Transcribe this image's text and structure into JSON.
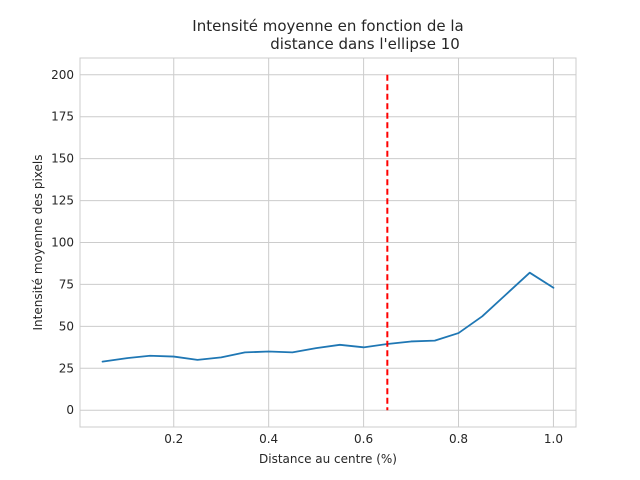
{
  "chart_data": {
    "type": "line",
    "title_lines": [
      "Intensité moyenne en fonction de la",
      "distance dans l'ellipse 10"
    ],
    "xlabel": "Distance au centre (%)",
    "ylabel": "Intensité moyenne des pixels",
    "xlim": [
      0.0025,
      1.0475
    ],
    "ylim": [
      -10,
      210
    ],
    "xticks": [
      0.2,
      0.4,
      0.6,
      0.8,
      1.0
    ],
    "xtick_labels": [
      "0.2",
      "0.4",
      "0.6",
      "0.8",
      "1.0"
    ],
    "yticks": [
      0,
      25,
      50,
      75,
      100,
      125,
      150,
      175,
      200
    ],
    "ytick_labels": [
      "0",
      "25",
      "50",
      "75",
      "100",
      "125",
      "150",
      "175",
      "200"
    ],
    "grid": true,
    "series": [
      {
        "color": "#1f77b4",
        "x": [
          0.05,
          0.1,
          0.15,
          0.2,
          0.25,
          0.3,
          0.35,
          0.4,
          0.45,
          0.5,
          0.55,
          0.6,
          0.65,
          0.7,
          0.75,
          0.8,
          0.85,
          0.9,
          0.95,
          1.0
        ],
        "y": [
          29,
          31,
          32.5,
          32,
          30,
          31.5,
          34.5,
          35,
          34.5,
          37,
          39,
          37.5,
          39.5,
          41,
          41.5,
          46,
          56,
          69,
          82,
          73
        ]
      }
    ],
    "vline": {
      "x": 0.65,
      "y_range": [
        0,
        200
      ],
      "color": "#ff0000",
      "style": "dashed"
    }
  }
}
